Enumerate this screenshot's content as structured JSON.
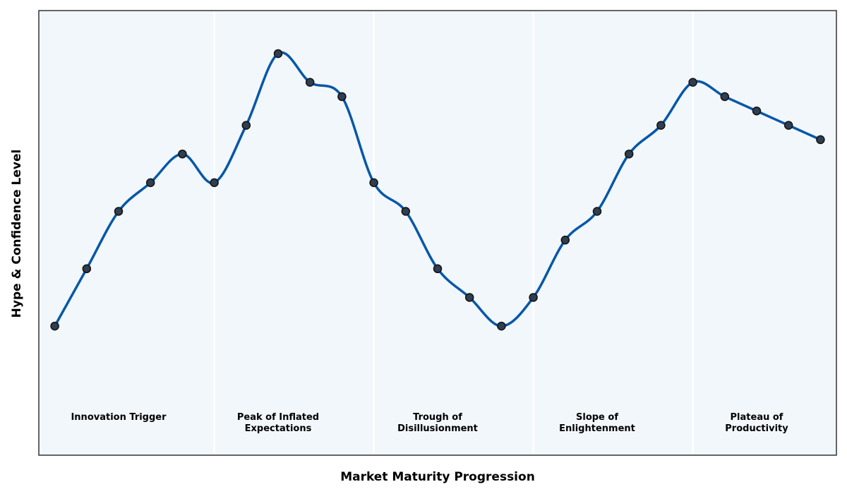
{
  "chart_data": {
    "type": "line",
    "xlabel": "Market Maturity Progression",
    "ylabel": "Hype & Confidence Level",
    "x": [
      0,
      1,
      2,
      3,
      4,
      5,
      6,
      7,
      8,
      9,
      10,
      11,
      12,
      13,
      14,
      15,
      16,
      17,
      18,
      19,
      20,
      21,
      22,
      23,
      24
    ],
    "series": [
      {
        "values": [
          2.0,
          4.0,
          6.0,
          7.0,
          8.0,
          7.0,
          9.0,
          11.5,
          10.5,
          10.0,
          7.0,
          6.0,
          4.0,
          3.0,
          2.0,
          3.0,
          5.0,
          6.0,
          8.0,
          9.0,
          10.5,
          10.0,
          9.5,
          9.0,
          8.5
        ]
      }
    ],
    "xlim": [
      -0.5,
      24.5
    ],
    "ylim": [
      -2.5,
      13.0
    ],
    "phases": [
      {
        "label_lines": [
          "Innovation Trigger"
        ]
      },
      {
        "label_lines": [
          "Peak of Inflated",
          "Expectations"
        ]
      },
      {
        "label_lines": [
          "Trough of",
          "Disillusionment"
        ]
      },
      {
        "label_lines": [
          "Slope of",
          "Enlightenment"
        ]
      },
      {
        "label_lines": [
          "Plateau of",
          "Productivity"
        ]
      }
    ],
    "phase_boundaries": [
      5,
      10,
      15,
      20
    ],
    "grid": false,
    "legend": "none"
  },
  "colors": {
    "line": "#0657a8",
    "marker_fill": "#2f3e51",
    "marker_edge": "#111111",
    "plot_bg": "#f2f7fb",
    "divider": "#ffffff",
    "frame": "#333333"
  }
}
